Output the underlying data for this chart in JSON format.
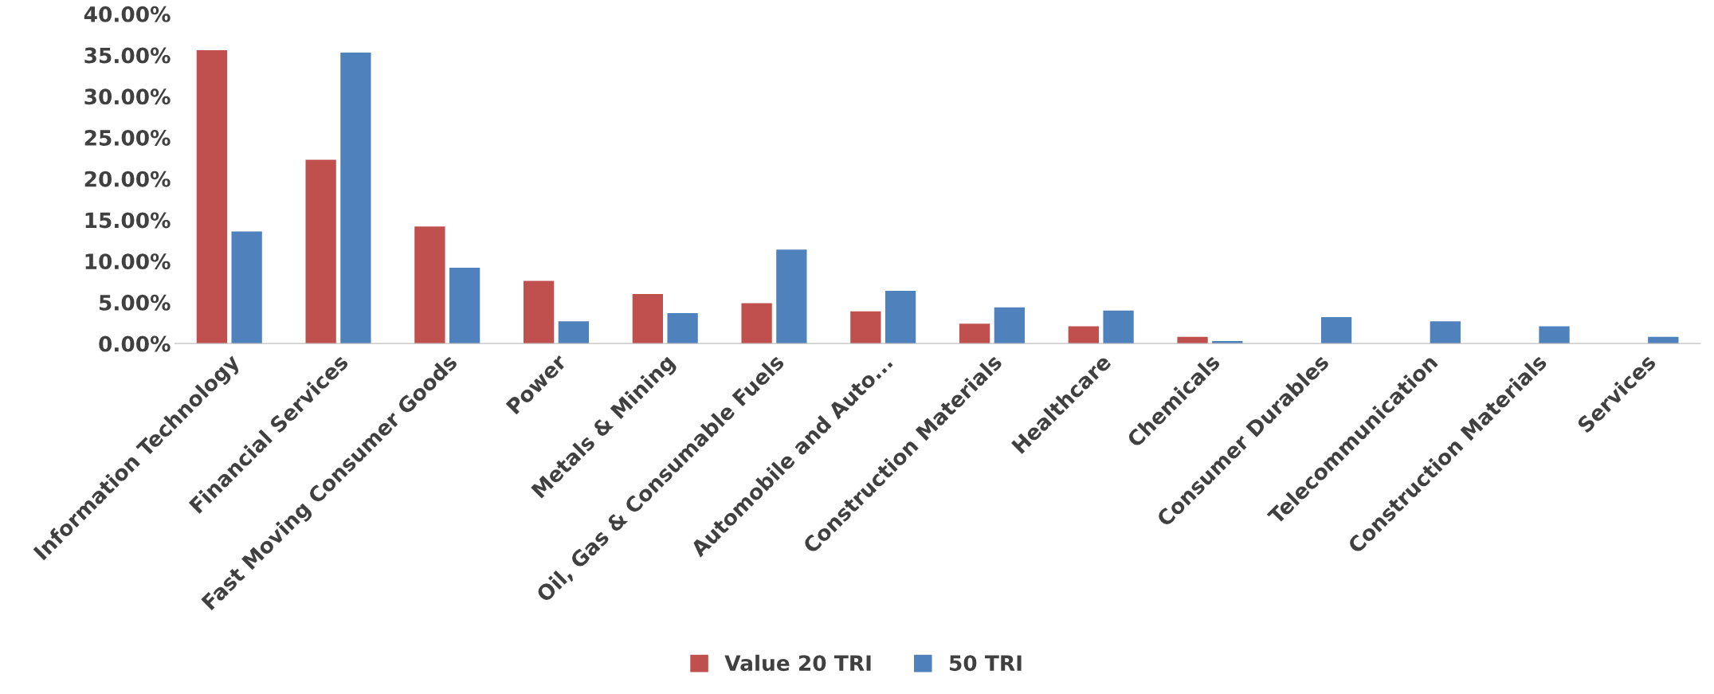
{
  "chart_data": {
    "type": "bar",
    "categories": [
      "Information Technology",
      "Financial Services",
      "Fast Moving Consumer Goods",
      "Power",
      "Metals & Mining",
      "Oil, Gas & Consumable Fuels",
      "Automobile and Auto...",
      "Construction Materials",
      "Healthcare",
      "Chemicals",
      "Consumer Durables",
      "Telecommunication",
      "Construction Materials",
      "Services"
    ],
    "series": [
      {
        "name": "Value 20 TRI",
        "color": "#c0504d",
        "values": [
          35.6,
          22.3,
          14.2,
          7.6,
          6.0,
          4.9,
          3.9,
          2.4,
          2.1,
          0.8,
          null,
          null,
          null,
          null
        ]
      },
      {
        "name": "50 TRI",
        "color": "#4f81bd",
        "values": [
          13.6,
          35.3,
          9.2,
          2.7,
          3.7,
          11.4,
          6.4,
          4.4,
          4.0,
          0.3,
          3.2,
          2.7,
          2.1,
          0.8
        ]
      }
    ],
    "ylim": [
      0,
      40
    ],
    "yticks": [
      {
        "value": 0,
        "label": "0.00%"
      },
      {
        "value": 5,
        "label": "5.00%"
      },
      {
        "value": 10,
        "label": "10.00%"
      },
      {
        "value": 15,
        "label": "15.00%"
      },
      {
        "value": 20,
        "label": "20.00%"
      },
      {
        "value": 25,
        "label": "25.00%"
      },
      {
        "value": 30,
        "label": "30.00%"
      },
      {
        "value": 35,
        "label": "35.00%"
      },
      {
        "value": 40,
        "label": "40.00%"
      }
    ],
    "grid": false,
    "legend": "bottom"
  }
}
